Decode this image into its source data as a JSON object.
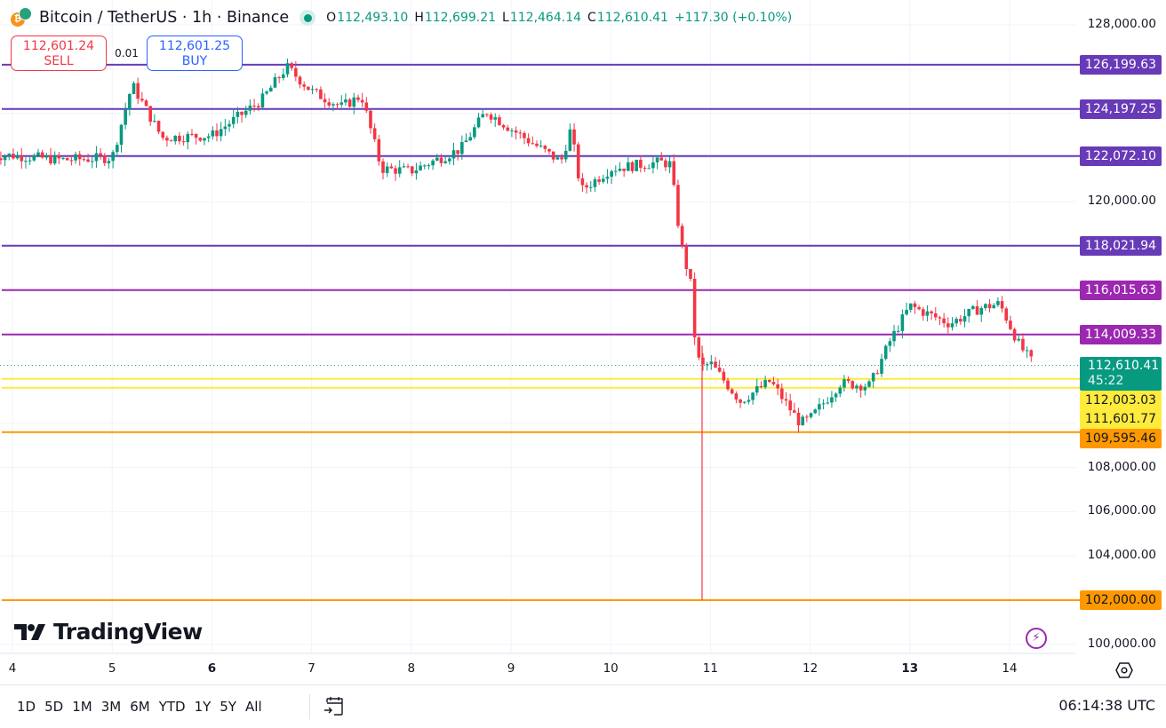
{
  "header": {
    "symbol_title": "Bitcoin / TetherUS · 1h · Binance",
    "base_icon": "bitcoin-icon",
    "quote_icon": "tether-icon",
    "status_icon": "market-open-dot",
    "ohlc": {
      "o_label": "O",
      "o_value": "112,493.10",
      "h_label": "H",
      "h_value": "112,699.21",
      "l_label": "L",
      "l_value": "112,464.14",
      "c_label": "C",
      "c_value": "112,610.41",
      "change": "+117.30 (+0.10%)"
    }
  },
  "trade": {
    "sell_price": "112,601.24",
    "sell_label": "SELL",
    "spread": "0.01",
    "buy_price": "112,601.25",
    "buy_label": "BUY"
  },
  "price_axis": {
    "ticks": [
      {
        "label": "128,000.00",
        "price": 128000
      },
      {
        "label": "120,000.00",
        "price": 120000
      },
      {
        "label": "108,000.00",
        "price": 108000
      },
      {
        "label": "106,000.00",
        "price": 106000
      },
      {
        "label": "104,000.00",
        "price": 104000
      },
      {
        "label": "100,000.00",
        "price": 100000
      }
    ],
    "settings_icon": "settings-hexagon-icon"
  },
  "horizontal_lines": [
    {
      "label": "126,199.63",
      "price": 126199.63,
      "color": "#673ab7"
    },
    {
      "label": "124,197.25",
      "price": 124197.25,
      "color": "#673ab7"
    },
    {
      "label": "122,072.10",
      "price": 122072.1,
      "color": "#673ab7"
    },
    {
      "label": "118,021.94",
      "price": 118021.94,
      "color": "#673ab7"
    },
    {
      "label": "116,015.63",
      "price": 116015.63,
      "color": "#9c27b0"
    },
    {
      "label": "114,009.33",
      "price": 114009.33,
      "color": "#9c27b0"
    },
    {
      "label": "112,003.03",
      "price": 112003.03,
      "color": "#ffeb3b"
    },
    {
      "label": "111,601.77",
      "price": 111601.77,
      "color": "#ffeb3b"
    },
    {
      "label": "109,595.46",
      "price": 109595.46,
      "color": "#ff9800"
    },
    {
      "label": "102,000.00",
      "price": 102000.0,
      "color": "#ff9800"
    }
  ],
  "current_price": {
    "label": "112,610.41",
    "countdown": "45:22",
    "price": 112610.41,
    "color": "#089981"
  },
  "time_axis": {
    "labels": [
      {
        "label": "4",
        "bold": false
      },
      {
        "label": "5",
        "bold": false
      },
      {
        "label": "6",
        "bold": true
      },
      {
        "label": "7",
        "bold": false
      },
      {
        "label": "8",
        "bold": false
      },
      {
        "label": "9",
        "bold": false
      },
      {
        "label": "10",
        "bold": false
      },
      {
        "label": "11",
        "bold": false
      },
      {
        "label": "12",
        "bold": false
      },
      {
        "label": "13",
        "bold": true
      },
      {
        "label": "14",
        "bold": false
      }
    ]
  },
  "branding": {
    "logo_text": "TradingView",
    "logo_icon": "tradingview-logo-icon"
  },
  "bolt_icon": "lightning-icon",
  "bottom_bar": {
    "ranges": [
      "1D",
      "5D",
      "1M",
      "3M",
      "6M",
      "YTD",
      "1Y",
      "5Y",
      "All"
    ],
    "goto_icon": "calendar-goto-icon",
    "clock": "06:14:38 UTC"
  },
  "colors": {
    "up": "#089981",
    "down": "#f23645",
    "grid": "#f0f3fa"
  },
  "chart_data": {
    "type": "candlestick",
    "title": "Bitcoin / TetherUS · 1h · Binance",
    "interval": "1h",
    "x_axis": [
      "4",
      "5",
      "6",
      "7",
      "8",
      "9",
      "10",
      "11",
      "12",
      "13",
      "14"
    ],
    "y_range": [
      100000,
      128000
    ],
    "last_close": 112610.41,
    "key_levels": [
      126199.63,
      124197.25,
      122072.1,
      118021.94,
      116015.63,
      114009.33,
      112003.03,
      111601.77,
      109595.46,
      102000.0
    ],
    "path_approx": [
      [
        4,
        122100
      ],
      [
        4.5,
        121900
      ],
      [
        5,
        122000
      ],
      [
        5.2,
        125300
      ],
      [
        5.5,
        122900
      ],
      [
        6,
        123000
      ],
      [
        6.5,
        124600
      ],
      [
        6.75,
        126100
      ],
      [
        7,
        125000
      ],
      [
        7.3,
        124300
      ],
      [
        7.5,
        124800
      ],
      [
        7.7,
        121500
      ],
      [
        8,
        121400
      ],
      [
        8.5,
        122400
      ],
      [
        8.75,
        124100
      ],
      [
        9,
        123300
      ],
      [
        9.5,
        121800
      ],
      [
        9.6,
        123300
      ],
      [
        9.7,
        120500
      ],
      [
        10,
        121500
      ],
      [
        10.5,
        121800
      ],
      [
        10.6,
        121700
      ],
      [
        10.7,
        118200
      ],
      [
        10.8,
        116300
      ],
      [
        10.85,
        113500
      ],
      [
        10.9,
        112500
      ],
      [
        11,
        112700
      ],
      [
        11.3,
        111000
      ],
      [
        11.6,
        111900
      ],
      [
        11.9,
        110000
      ],
      [
        12,
        110200
      ],
      [
        12.3,
        111800
      ],
      [
        12.6,
        111700
      ],
      [
        12.8,
        113700
      ],
      [
        13,
        115300
      ],
      [
        13.4,
        114500
      ],
      [
        13.7,
        115200
      ],
      [
        13.9,
        115400
      ],
      [
        14.1,
        113500
      ],
      [
        14.25,
        112610
      ]
    ]
  }
}
